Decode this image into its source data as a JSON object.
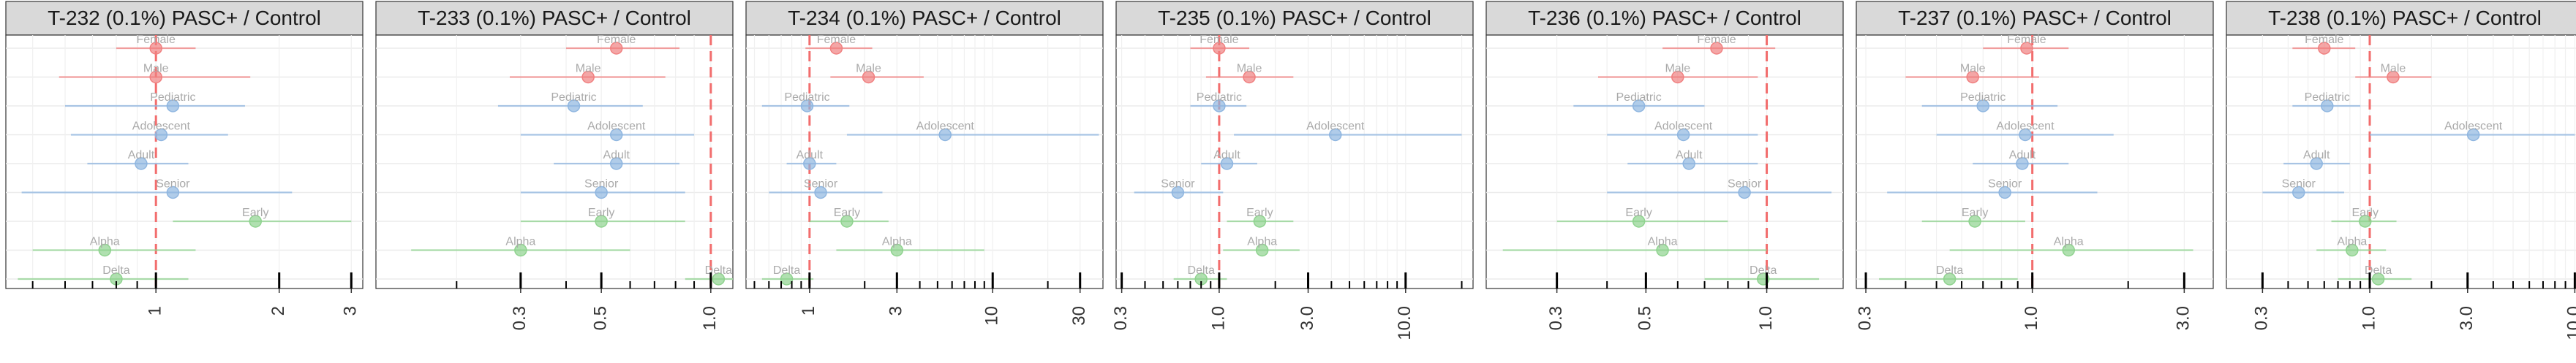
{
  "chart_data": [
    {
      "type": "forest",
      "title": "T-232 (0.1%) PASC+ / Control",
      "xscale": "log",
      "xlim": [
        0.43,
        3.2
      ],
      "reference_line": 1.0,
      "x_ticks": [
        1,
        2,
        3
      ],
      "x_tick_labels": [
        "1",
        "2",
        "3"
      ],
      "grid": true,
      "points": [
        {
          "label": "Female",
          "group": "sex",
          "color": "#f08080",
          "estimate": 1.0,
          "lower": 0.8,
          "upper": 1.25
        },
        {
          "label": "Male",
          "group": "sex",
          "color": "#f08080",
          "estimate": 1.0,
          "lower": 0.58,
          "upper": 1.7
        },
        {
          "label": "Pediatric",
          "group": "age",
          "color": "#8fb6e0",
          "estimate": 1.1,
          "lower": 0.6,
          "upper": 1.65
        },
        {
          "label": "Adolescent",
          "group": "age",
          "color": "#8fb6e0",
          "estimate": 1.03,
          "lower": 0.62,
          "upper": 1.5
        },
        {
          "label": "Adult",
          "group": "age",
          "color": "#8fb6e0",
          "estimate": 0.92,
          "lower": 0.68,
          "upper": 1.2
        },
        {
          "label": "Senior",
          "group": "age",
          "color": "#8fb6e0",
          "estimate": 1.1,
          "lower": 0.47,
          "upper": 2.15
        },
        {
          "label": "Early",
          "group": "variant",
          "color": "#8fd38f",
          "estimate": 1.75,
          "lower": 1.1,
          "upper": 3.0
        },
        {
          "label": "Alpha",
          "group": "variant",
          "color": "#8fd38f",
          "estimate": 0.75,
          "lower": 0.5,
          "upper": 1.25
        },
        {
          "label": "Delta",
          "group": "variant",
          "color": "#8fd38f",
          "estimate": 0.8,
          "lower": 0.46,
          "upper": 1.2
        }
      ]
    },
    {
      "type": "forest",
      "title": "T-233 (0.1%) PASC+ / Control",
      "xscale": "log",
      "xlim": [
        0.12,
        1.15
      ],
      "reference_line": 1.0,
      "x_ticks": [
        0.3,
        0.5,
        1.0
      ],
      "x_tick_labels": [
        "0.3",
        "0.5",
        "1.0"
      ],
      "grid": true,
      "points": [
        {
          "label": "Female",
          "group": "sex",
          "color": "#f08080",
          "estimate": 0.55,
          "lower": 0.4,
          "upper": 0.82
        },
        {
          "label": "Male",
          "group": "sex",
          "color": "#f08080",
          "estimate": 0.46,
          "lower": 0.28,
          "upper": 0.75
        },
        {
          "label": "Pediatric",
          "group": "age",
          "color": "#8fb6e0",
          "estimate": 0.42,
          "lower": 0.26,
          "upper": 0.65
        },
        {
          "label": "Adolescent",
          "group": "age",
          "color": "#8fb6e0",
          "estimate": 0.55,
          "lower": 0.3,
          "upper": 0.9
        },
        {
          "label": "Adult",
          "group": "age",
          "color": "#8fb6e0",
          "estimate": 0.55,
          "lower": 0.37,
          "upper": 0.82
        },
        {
          "label": "Senior",
          "group": "age",
          "color": "#8fb6e0",
          "estimate": 0.5,
          "lower": 0.3,
          "upper": 0.85
        },
        {
          "label": "Early",
          "group": "variant",
          "color": "#8fd38f",
          "estimate": 0.5,
          "lower": 0.3,
          "upper": 0.85
        },
        {
          "label": "Alpha",
          "group": "variant",
          "color": "#8fd38f",
          "estimate": 0.3,
          "lower": 0.15,
          "upper": 0.6
        },
        {
          "label": "Delta",
          "group": "variant",
          "color": "#8fd38f",
          "estimate": 1.05,
          "lower": 0.85,
          "upper": 1.3
        }
      ]
    },
    {
      "type": "forest",
      "title": "T-234 (0.1%) PASC+ / Control",
      "xscale": "log",
      "xlim": [
        0.45,
        40
      ],
      "reference_line": 1.0,
      "x_ticks": [
        1,
        3,
        10,
        30
      ],
      "x_tick_labels": [
        "1",
        "3",
        "10",
        "30"
      ],
      "grid": true,
      "points": [
        {
          "label": "Female",
          "group": "sex",
          "color": "#f08080",
          "estimate": 1.4,
          "lower": 0.95,
          "upper": 2.2
        },
        {
          "label": "Male",
          "group": "sex",
          "color": "#f08080",
          "estimate": 2.1,
          "lower": 1.3,
          "upper": 4.2
        },
        {
          "label": "Pediatric",
          "group": "age",
          "color": "#8fb6e0",
          "estimate": 0.97,
          "lower": 0.55,
          "upper": 1.65
        },
        {
          "label": "Adolescent",
          "group": "age",
          "color": "#8fb6e0",
          "estimate": 5.5,
          "lower": 1.6,
          "upper": 38
        },
        {
          "label": "Adult",
          "group": "age",
          "color": "#8fb6e0",
          "estimate": 1.0,
          "lower": 0.75,
          "upper": 1.4
        },
        {
          "label": "Senior",
          "group": "age",
          "color": "#8fb6e0",
          "estimate": 1.15,
          "lower": 0.6,
          "upper": 2.5
        },
        {
          "label": "Early",
          "group": "variant",
          "color": "#8fd38f",
          "estimate": 1.6,
          "lower": 1.0,
          "upper": 2.7
        },
        {
          "label": "Alpha",
          "group": "variant",
          "color": "#8fd38f",
          "estimate": 3.0,
          "lower": 1.4,
          "upper": 9.0
        },
        {
          "label": "Delta",
          "group": "variant",
          "color": "#8fd38f",
          "estimate": 0.75,
          "lower": 0.55,
          "upper": 1.05
        }
      ]
    },
    {
      "type": "forest",
      "title": "T-235 (0.1%) PASC+ / Control",
      "xscale": "log",
      "xlim": [
        0.28,
        23
      ],
      "reference_line": 1.0,
      "x_ticks": [
        0.3,
        1.0,
        3.0,
        10.0
      ],
      "x_tick_labels": [
        "0.3",
        "1.0",
        "3.0",
        "10.0"
      ],
      "grid": true,
      "points": [
        {
          "label": "Female",
          "group": "sex",
          "color": "#f08080",
          "estimate": 1.0,
          "lower": 0.7,
          "upper": 1.45
        },
        {
          "label": "Male",
          "group": "sex",
          "color": "#f08080",
          "estimate": 1.45,
          "lower": 0.85,
          "upper": 2.5
        },
        {
          "label": "Pediatric",
          "group": "age",
          "color": "#8fb6e0",
          "estimate": 1.0,
          "lower": 0.7,
          "upper": 1.4
        },
        {
          "label": "Adolescent",
          "group": "age",
          "color": "#8fb6e0",
          "estimate": 4.2,
          "lower": 1.2,
          "upper": 20
        },
        {
          "label": "Adult",
          "group": "age",
          "color": "#8fb6e0",
          "estimate": 1.1,
          "lower": 0.8,
          "upper": 1.6
        },
        {
          "label": "Senior",
          "group": "age",
          "color": "#8fb6e0",
          "estimate": 0.6,
          "lower": 0.35,
          "upper": 1.05
        },
        {
          "label": "Early",
          "group": "variant",
          "color": "#8fd38f",
          "estimate": 1.65,
          "lower": 1.1,
          "upper": 2.5
        },
        {
          "label": "Alpha",
          "group": "variant",
          "color": "#8fd38f",
          "estimate": 1.7,
          "lower": 1.05,
          "upper": 2.7
        },
        {
          "label": "Delta",
          "group": "variant",
          "color": "#8fd38f",
          "estimate": 0.8,
          "lower": 0.57,
          "upper": 1.1
        }
      ]
    },
    {
      "type": "forest",
      "title": "T-236 (0.1%) PASC+ / Control",
      "xscale": "log",
      "xlim": [
        0.2,
        1.55
      ],
      "reference_line": 1.0,
      "x_ticks": [
        0.3,
        0.5,
        1.0
      ],
      "x_tick_labels": [
        "0.3",
        "0.5",
        "1.0"
      ],
      "grid": true,
      "points": [
        {
          "label": "Female",
          "group": "sex",
          "color": "#f08080",
          "estimate": 0.75,
          "lower": 0.55,
          "upper": 1.05
        },
        {
          "label": "Male",
          "group": "sex",
          "color": "#f08080",
          "estimate": 0.6,
          "lower": 0.38,
          "upper": 0.95
        },
        {
          "label": "Pediatric",
          "group": "age",
          "color": "#8fb6e0",
          "estimate": 0.48,
          "lower": 0.33,
          "upper": 0.7
        },
        {
          "label": "Adolescent",
          "group": "age",
          "color": "#8fb6e0",
          "estimate": 0.62,
          "lower": 0.4,
          "upper": 0.95
        },
        {
          "label": "Adult",
          "group": "age",
          "color": "#8fb6e0",
          "estimate": 0.64,
          "lower": 0.45,
          "upper": 0.95
        },
        {
          "label": "Senior",
          "group": "age",
          "color": "#8fb6e0",
          "estimate": 0.88,
          "lower": 0.4,
          "upper": 1.45
        },
        {
          "label": "Early",
          "group": "variant",
          "color": "#8fd38f",
          "estimate": 0.48,
          "lower": 0.3,
          "upper": 0.8
        },
        {
          "label": "Alpha",
          "group": "variant",
          "color": "#8fd38f",
          "estimate": 0.55,
          "lower": 0.22,
          "upper": 1.0
        },
        {
          "label": "Delta",
          "group": "variant",
          "color": "#8fd38f",
          "estimate": 0.98,
          "lower": 0.7,
          "upper": 1.35
        }
      ]
    },
    {
      "type": "forest",
      "title": "T-237 (0.1%) PASC+ / Control",
      "xscale": "log",
      "xlim": [
        0.28,
        3.7
      ],
      "reference_line": 1.0,
      "x_ticks": [
        0.3,
        1.0,
        3.0
      ],
      "x_tick_labels": [
        "0.3",
        "1.0",
        "3.0"
      ],
      "grid": true,
      "points": [
        {
          "label": "Female",
          "group": "sex",
          "color": "#f08080",
          "estimate": 0.96,
          "lower": 0.7,
          "upper": 1.3
        },
        {
          "label": "Male",
          "group": "sex",
          "color": "#f08080",
          "estimate": 0.65,
          "lower": 0.4,
          "upper": 1.05
        },
        {
          "label": "Pediatric",
          "group": "age",
          "color": "#8fb6e0",
          "estimate": 0.7,
          "lower": 0.45,
          "upper": 1.2
        },
        {
          "label": "Adolescent",
          "group": "age",
          "color": "#8fb6e0",
          "estimate": 0.95,
          "lower": 0.5,
          "upper": 1.8
        },
        {
          "label": "Adult",
          "group": "age",
          "color": "#8fb6e0",
          "estimate": 0.93,
          "lower": 0.65,
          "upper": 1.3
        },
        {
          "label": "Senior",
          "group": "age",
          "color": "#8fb6e0",
          "estimate": 0.82,
          "lower": 0.35,
          "upper": 1.6
        },
        {
          "label": "Early",
          "group": "variant",
          "color": "#8fd38f",
          "estimate": 0.66,
          "lower": 0.45,
          "upper": 0.95
        },
        {
          "label": "Alpha",
          "group": "variant",
          "color": "#8fd38f",
          "estimate": 1.3,
          "lower": 0.55,
          "upper": 3.2
        },
        {
          "label": "Delta",
          "group": "variant",
          "color": "#8fd38f",
          "estimate": 0.55,
          "lower": 0.33,
          "upper": 0.9
        }
      ]
    },
    {
      "type": "forest",
      "title": "T-238 (0.1%) PASC+ / Control",
      "xscale": "log",
      "xlim": [
        0.2,
        11
      ],
      "reference_line": 1.0,
      "x_ticks": [
        0.3,
        1.0,
        3.0,
        10.0
      ],
      "x_tick_labels": [
        "0.3",
        "1.0",
        "3.0",
        "10.0"
      ],
      "grid": true,
      "points": [
        {
          "label": "Female",
          "group": "sex",
          "color": "#f08080",
          "estimate": 0.6,
          "lower": 0.42,
          "upper": 0.85
        },
        {
          "label": "Male",
          "group": "sex",
          "color": "#f08080",
          "estimate": 1.3,
          "lower": 0.85,
          "upper": 2.0
        },
        {
          "label": "Pediatric",
          "group": "age",
          "color": "#8fb6e0",
          "estimate": 0.62,
          "lower": 0.42,
          "upper": 0.9
        },
        {
          "label": "Adolescent",
          "group": "age",
          "color": "#8fb6e0",
          "estimate": 3.2,
          "lower": 1.0,
          "upper": 10
        },
        {
          "label": "Adult",
          "group": "age",
          "color": "#8fb6e0",
          "estimate": 0.55,
          "lower": 0.38,
          "upper": 0.8
        },
        {
          "label": "Senior",
          "group": "age",
          "color": "#8fb6e0",
          "estimate": 0.45,
          "lower": 0.3,
          "upper": 0.75
        },
        {
          "label": "Early",
          "group": "variant",
          "color": "#8fd38f",
          "estimate": 0.95,
          "lower": 0.65,
          "upper": 1.35
        },
        {
          "label": "Alpha",
          "group": "variant",
          "color": "#8fd38f",
          "estimate": 0.82,
          "lower": 0.55,
          "upper": 1.2
        },
        {
          "label": "Delta",
          "group": "variant",
          "color": "#8fd38f",
          "estimate": 1.1,
          "lower": 0.7,
          "upper": 1.6
        }
      ]
    }
  ]
}
